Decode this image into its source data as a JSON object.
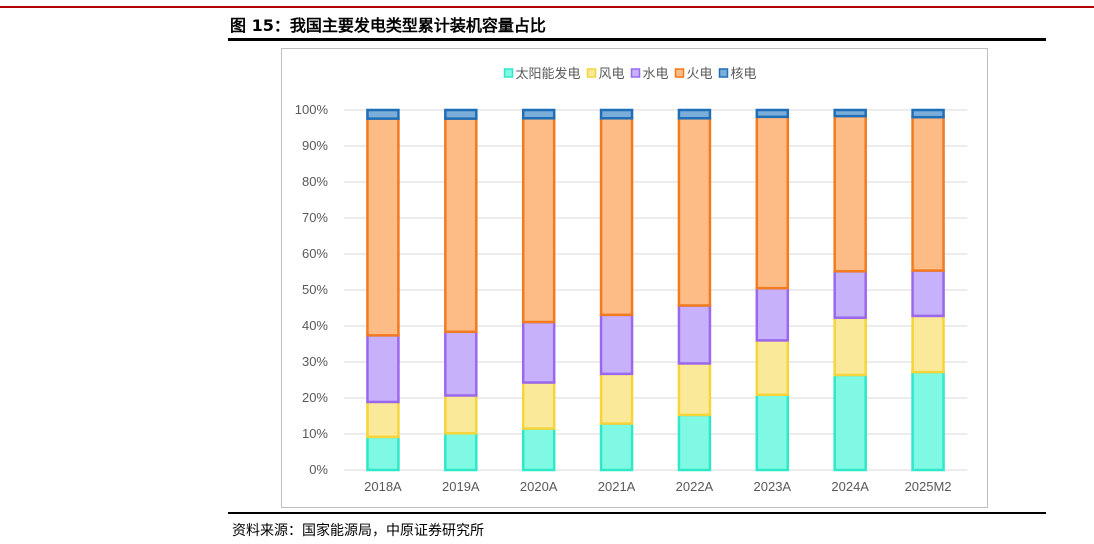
{
  "figure": {
    "title": "图 15：我国主要发电类型累计装机容量占比",
    "source": "资料来源：国家能源局，中原证券研究所"
  },
  "chart_data": {
    "type": "bar",
    "stacked": true,
    "categories": [
      "2018A",
      "2019A",
      "2020A",
      "2021A",
      "2022A",
      "2023A",
      "2024A",
      "2025M2"
    ],
    "ylim": [
      0,
      100
    ],
    "yticks": [
      "0%",
      "10%",
      "20%",
      "30%",
      "40%",
      "50%",
      "60%",
      "70%",
      "80%",
      "90%",
      "100%"
    ],
    "grid": true,
    "legend_position": "top",
    "series": [
      {
        "name": "太阳能发电",
        "fill": "#7ff9e4",
        "stroke": "#2ee8c8",
        "values": [
          9.2,
          10.2,
          11.5,
          12.9,
          15.3,
          20.9,
          26.4,
          27.2
        ]
      },
      {
        "name": "风电",
        "fill": "#fbe99a",
        "stroke": "#f6d43a",
        "values": [
          9.7,
          10.5,
          12.8,
          13.8,
          14.3,
          15.1,
          15.9,
          15.6
        ]
      },
      {
        "name": "水电",
        "fill": "#c7b1fb",
        "stroke": "#9a68ee",
        "values": [
          18.5,
          17.7,
          16.8,
          16.4,
          16.1,
          14.5,
          12.9,
          12.6
        ]
      },
      {
        "name": "火电",
        "fill": "#fdbb86",
        "stroke": "#f27a1f",
        "values": [
          60.2,
          59.2,
          56.6,
          54.6,
          52.0,
          47.6,
          43.1,
          42.6
        ]
      },
      {
        "name": "核电",
        "fill": "#7aaed9",
        "stroke": "#1f6fb8",
        "values": [
          2.4,
          2.4,
          2.3,
          2.3,
          2.3,
          1.9,
          1.7,
          2.0
        ]
      }
    ]
  }
}
